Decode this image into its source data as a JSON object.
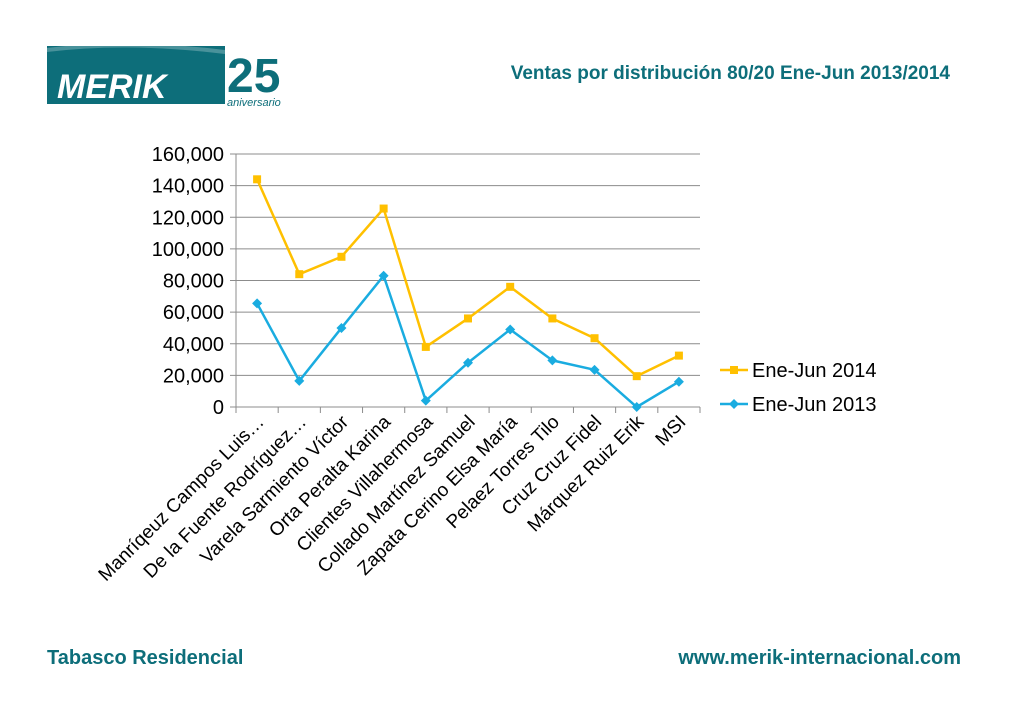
{
  "header": {
    "logo_text": "MERIK",
    "logo_anniversary_number": "25",
    "logo_anniversary_word": "aniversario",
    "title": "Ventas por distribución 80/20 Ene-Jun 2013/2014"
  },
  "footer": {
    "left": "Tabasco Residencial",
    "right": "www.merik-internacional.com"
  },
  "colors": {
    "brand": "#0d6e7a",
    "series_2014": "#ffc000",
    "series_2013": "#1aace0"
  },
  "chart_data": {
    "type": "line",
    "title": "Ventas por distribución 80/20 Ene-Jun 2013/2014",
    "xlabel": "",
    "ylabel": "",
    "ylim": [
      0,
      160000
    ],
    "yticks": [
      0,
      20000,
      40000,
      60000,
      80000,
      100000,
      120000,
      140000,
      160000
    ],
    "ytick_labels": [
      "0",
      "20,000",
      "40,000",
      "60,000",
      "80,000",
      "100,000",
      "120,000",
      "140,000",
      "160,000"
    ],
    "grid": true,
    "legend_position": "right",
    "categories": [
      "Manríqeuz Campos Luis…",
      "De la Fuente Rodríguez…",
      "Varela Sarmiento Víctor",
      "Orta Peralta Karina",
      "Clientes Villahermosa",
      "Collado Martínez Samuel",
      "Zapata Cerino Elsa María",
      "Pelaez Torres Tilo",
      "Cruz Cruz Fidel",
      "Márquez Ruiz Erik",
      "MSI"
    ],
    "series": [
      {
        "name": "Ene-Jun 2014",
        "marker": "square",
        "values": [
          144000,
          84000,
          95000,
          125500,
          38000,
          56000,
          76000,
          56000,
          43500,
          19500,
          32500
        ]
      },
      {
        "name": "Ene-Jun 2013",
        "marker": "diamond",
        "values": [
          65500,
          16500,
          50000,
          83000,
          4000,
          28000,
          49000,
          29500,
          23500,
          0,
          16000
        ]
      }
    ]
  }
}
